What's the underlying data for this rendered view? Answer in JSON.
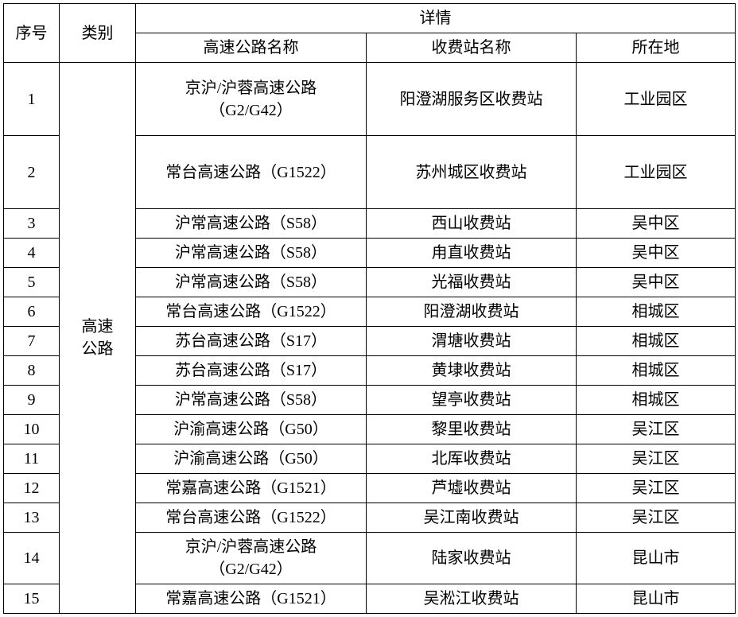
{
  "headers": {
    "seq": "序号",
    "category": "类别",
    "details": "详情",
    "highway_name": "高速公路名称",
    "toll_name": "收费站名称",
    "location": "所在地"
  },
  "category_label": "高速\n公路",
  "rows": [
    {
      "seq": "1",
      "highway": "京沪/沪蓉高速公路\n（G2/G42）",
      "toll": "阳澄湖服务区收费站",
      "location": "工业园区"
    },
    {
      "seq": "2",
      "highway": "常台高速公路（G1522）",
      "toll": "苏州城区收费站",
      "location": "工业园区"
    },
    {
      "seq": "3",
      "highway": "沪常高速公路（S58）",
      "toll": "西山收费站",
      "location": "吴中区"
    },
    {
      "seq": "4",
      "highway": "沪常高速公路（S58）",
      "toll": "甪直收费站",
      "location": "吴中区"
    },
    {
      "seq": "5",
      "highway": "沪常高速公路（S58）",
      "toll": "光福收费站",
      "location": "吴中区"
    },
    {
      "seq": "6",
      "highway": "常台高速公路（G1522）",
      "toll": "阳澄湖收费站",
      "location": "相城区"
    },
    {
      "seq": "7",
      "highway": "苏台高速公路（S17）",
      "toll": "渭塘收费站",
      "location": "相城区"
    },
    {
      "seq": "8",
      "highway": "苏台高速公路（S17）",
      "toll": "黄埭收费站",
      "location": "相城区"
    },
    {
      "seq": "9",
      "highway": "沪常高速公路（S58）",
      "toll": "望亭收费站",
      "location": "相城区"
    },
    {
      "seq": "10",
      "highway": "沪渝高速公路（G50）",
      "toll": "黎里收费站",
      "location": "吴江区"
    },
    {
      "seq": "11",
      "highway": "沪渝高速公路（G50）",
      "toll": "北厍收费站",
      "location": "吴江区"
    },
    {
      "seq": "12",
      "highway": "常嘉高速公路（G1521）",
      "toll": "芦墟收费站",
      "location": "吴江区"
    },
    {
      "seq": "13",
      "highway": "常台高速公路（G1522）",
      "toll": "吴江南收费站",
      "location": "吴江区"
    },
    {
      "seq": "14",
      "highway": "京沪/沪蓉高速公路\n（G2/G42）",
      "toll": "陆家收费站",
      "location": "昆山市"
    },
    {
      "seq": "15",
      "highway": "常嘉高速公路（G1521）",
      "toll": "吴淞江收费站",
      "location": "昆山市"
    }
  ],
  "colors": {
    "border": "#000000",
    "text": "#000000",
    "background": "#ffffff"
  },
  "fontsize_pt": 15
}
